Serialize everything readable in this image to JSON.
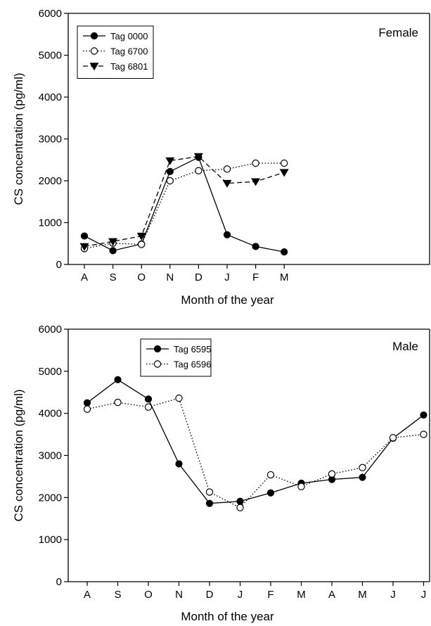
{
  "chart_data": [
    {
      "type": "line",
      "panel_label": "Female",
      "xlabel": "Month of the year",
      "ylabel": "CS concentration (pg/ml)",
      "categories": [
        "A",
        "S",
        "O",
        "N",
        "D",
        "J",
        "F",
        "M"
      ],
      "ylim": [
        0,
        6000
      ],
      "yticks": [
        0,
        1000,
        2000,
        3000,
        4000,
        5000,
        6000
      ],
      "grid": false,
      "legend_position": "top-left",
      "series": [
        {
          "name": "Tag 0000",
          "marker": "filled-circle",
          "line": "solid",
          "values": [
            680,
            330,
            490,
            2220,
            2560,
            710,
            430,
            300
          ]
        },
        {
          "name": "Tag 6700",
          "marker": "open-circle",
          "line": "dotted",
          "values": [
            380,
            510,
            480,
            2000,
            2240,
            2280,
            2420,
            2420
          ]
        },
        {
          "name": "Tag 6801",
          "marker": "filled-triangle-down",
          "line": "dashed",
          "values": [
            430,
            550,
            680,
            2480,
            2580,
            1940,
            1980,
            2200
          ]
        }
      ]
    },
    {
      "type": "line",
      "panel_label": "Male",
      "xlabel": "Month of the year",
      "ylabel": "CS concentration (pg/ml)",
      "categories": [
        "A",
        "S",
        "O",
        "N",
        "D",
        "J",
        "F",
        "M",
        "A",
        "M",
        "J",
        "J"
      ],
      "ylim": [
        0,
        6000
      ],
      "yticks": [
        0,
        1000,
        2000,
        3000,
        4000,
        5000,
        6000
      ],
      "grid": false,
      "legend_position": "top-left",
      "series": [
        {
          "name": "Tag 6595",
          "marker": "filled-circle",
          "line": "solid",
          "values": [
            4250,
            4800,
            4340,
            2800,
            1860,
            1910,
            2110,
            2340,
            2430,
            2480,
            3410,
            3960
          ]
        },
        {
          "name": "Tag 6596",
          "marker": "open-circle",
          "line": "dotted",
          "values": [
            4100,
            4260,
            4150,
            4360,
            2130,
            1760,
            2540,
            2260,
            2560,
            2710,
            3420,
            3500
          ]
        }
      ]
    }
  ]
}
